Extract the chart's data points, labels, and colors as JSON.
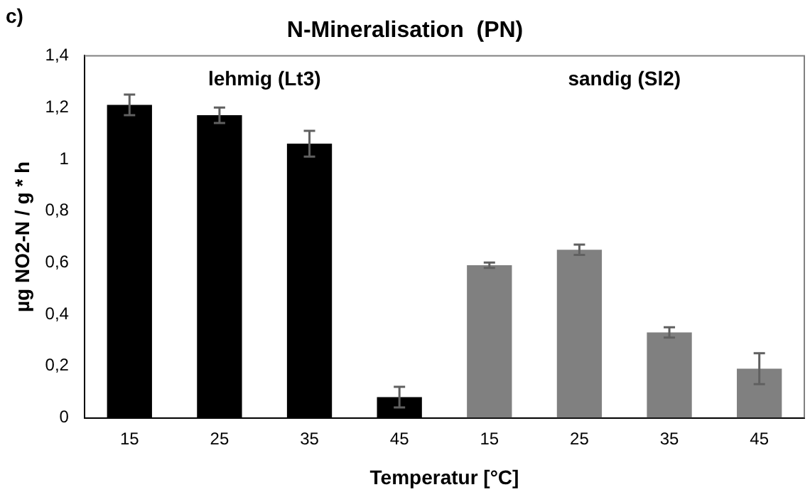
{
  "chart_data": {
    "type": "bar",
    "title": "N-Mineralisation  (PN)",
    "xlabel": "Temperatur [°C]",
    "ylabel": "µg NO2-N / g * h",
    "categories": [
      "15",
      "25",
      "35",
      "45",
      "15",
      "25",
      "35",
      "45"
    ],
    "values": [
      1.21,
      1.17,
      1.06,
      0.08,
      0.59,
      0.65,
      0.33,
      0.19
    ],
    "errors": [
      0.04,
      0.03,
      0.05,
      0.04,
      0.01,
      0.02,
      0.02,
      0.06
    ],
    "colors": [
      "#000000",
      "#000000",
      "#000000",
      "#000000",
      "#808080",
      "#808080",
      "#808080",
      "#808080"
    ],
    "ylim": [
      0,
      1.4
    ],
    "yticks": [
      {
        "value": 0,
        "label": "0"
      },
      {
        "value": 0.2,
        "label": "0,2"
      },
      {
        "value": 0.4,
        "label": "0,4"
      },
      {
        "value": 0.6,
        "label": "0,6"
      },
      {
        "value": 0.8,
        "label": "0,8"
      },
      {
        "value": 1,
        "label": "1"
      },
      {
        "value": 1.2,
        "label": "1,2"
      },
      {
        "value": 1.4,
        "label": "1,4"
      }
    ],
    "grid": false,
    "legend": false,
    "annotations": [
      "c)",
      "lehmig (Lt3)",
      "sandig (Sl2)"
    ]
  }
}
